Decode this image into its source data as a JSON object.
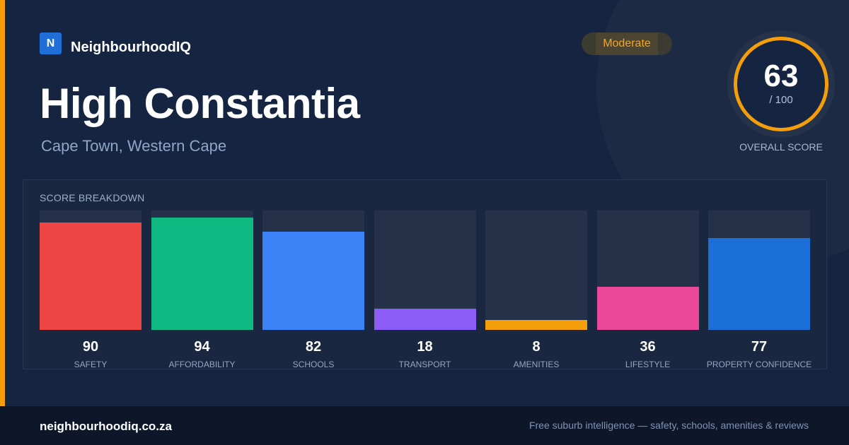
{
  "brand": {
    "logo_letter": "N",
    "name": "NeighbourhoodIQ"
  },
  "suburb": {
    "name": "High Constantia",
    "location": "Cape Town, Western Cape"
  },
  "rating_badge": "Moderate",
  "overall": {
    "score": "63",
    "max": "/ 100",
    "label": "OVERALL SCORE"
  },
  "breakdown": {
    "heading": "SCORE BREAKDOWN",
    "items": [
      {
        "label": "SAFETY",
        "value": "90",
        "color": "#ef4444"
      },
      {
        "label": "AFFORDABILITY",
        "value": "94",
        "color": "#10b981"
      },
      {
        "label": "SCHOOLS",
        "value": "82",
        "color": "#3b82f6"
      },
      {
        "label": "TRANSPORT",
        "value": "18",
        "color": "#8b5cf6"
      },
      {
        "label": "AMENITIES",
        "value": "8",
        "color": "#f59e0b"
      },
      {
        "label": "LIFESTYLE",
        "value": "36",
        "color": "#ec4899"
      },
      {
        "label": "PROPERTY CONFIDENCE",
        "value": "77",
        "color": "#1d6fd8"
      }
    ]
  },
  "footer": {
    "site": "neighbourhoodiq.co.za",
    "tagline": "Free suburb intelligence — safety, schools, amenities & reviews"
  },
  "colors": {
    "accent": "#f59e0b",
    "brand_blue": "#1f6fd6",
    "background": "#152440"
  }
}
